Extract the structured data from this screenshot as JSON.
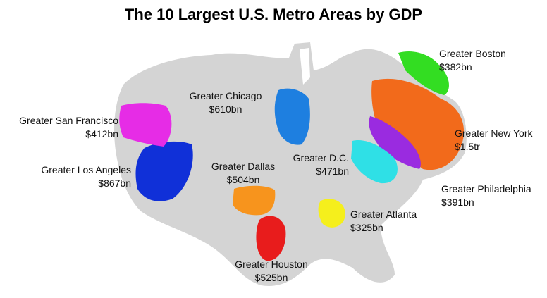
{
  "title": "The 10 Largest U.S. Metro Areas by GDP",
  "colors": {
    "land": "#d4d4d4",
    "boston": "#33dd22",
    "new_york": "#f26a1b",
    "philadelphia": "#9a2be0",
    "dc": "#2fe0e6",
    "atlanta": "#f5ef1c",
    "houston": "#e81c1c",
    "dallas": "#f7941d",
    "los_angeles": "#1030d8",
    "san_francisco": "#e62ce6",
    "chicago": "#1e7fe0"
  },
  "metros": [
    {
      "name": "Greater Boston",
      "gdp": "$382bn"
    },
    {
      "name": "Greater Chicago",
      "gdp": "$610bn"
    },
    {
      "name": "Greater San Francisco",
      "gdp": "$412bn"
    },
    {
      "name": "Greater New York",
      "gdp": "$1.5tr"
    },
    {
      "name": "Greater Los Angeles",
      "gdp": "$867bn"
    },
    {
      "name": "Greater Dallas",
      "gdp": "$504bn"
    },
    {
      "name": "Greater D.C.",
      "gdp": "$471bn"
    },
    {
      "name": "Greater Philadelphia",
      "gdp": "$391bn"
    },
    {
      "name": "Greater Atlanta",
      "gdp": "$325bn"
    },
    {
      "name": "Greater Houston",
      "gdp": "$525bn"
    }
  ]
}
